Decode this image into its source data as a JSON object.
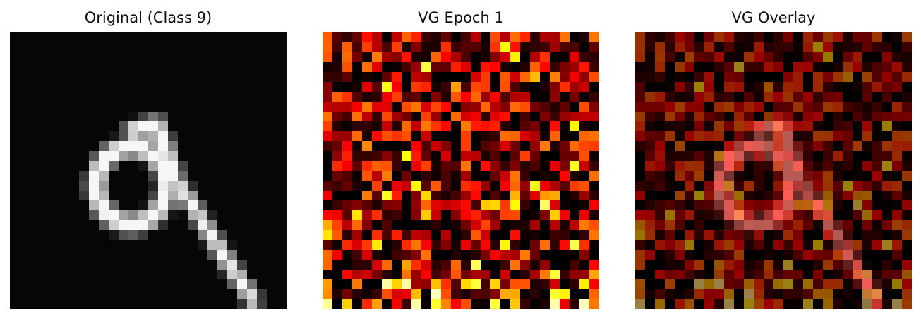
{
  "panels": [
    {
      "title": "Original (Class 9)"
    },
    {
      "title": "VG Epoch 1"
    },
    {
      "title": "VG Overlay"
    }
  ],
  "colormaps": {
    "original": "gray",
    "gradient": "hot"
  }
}
